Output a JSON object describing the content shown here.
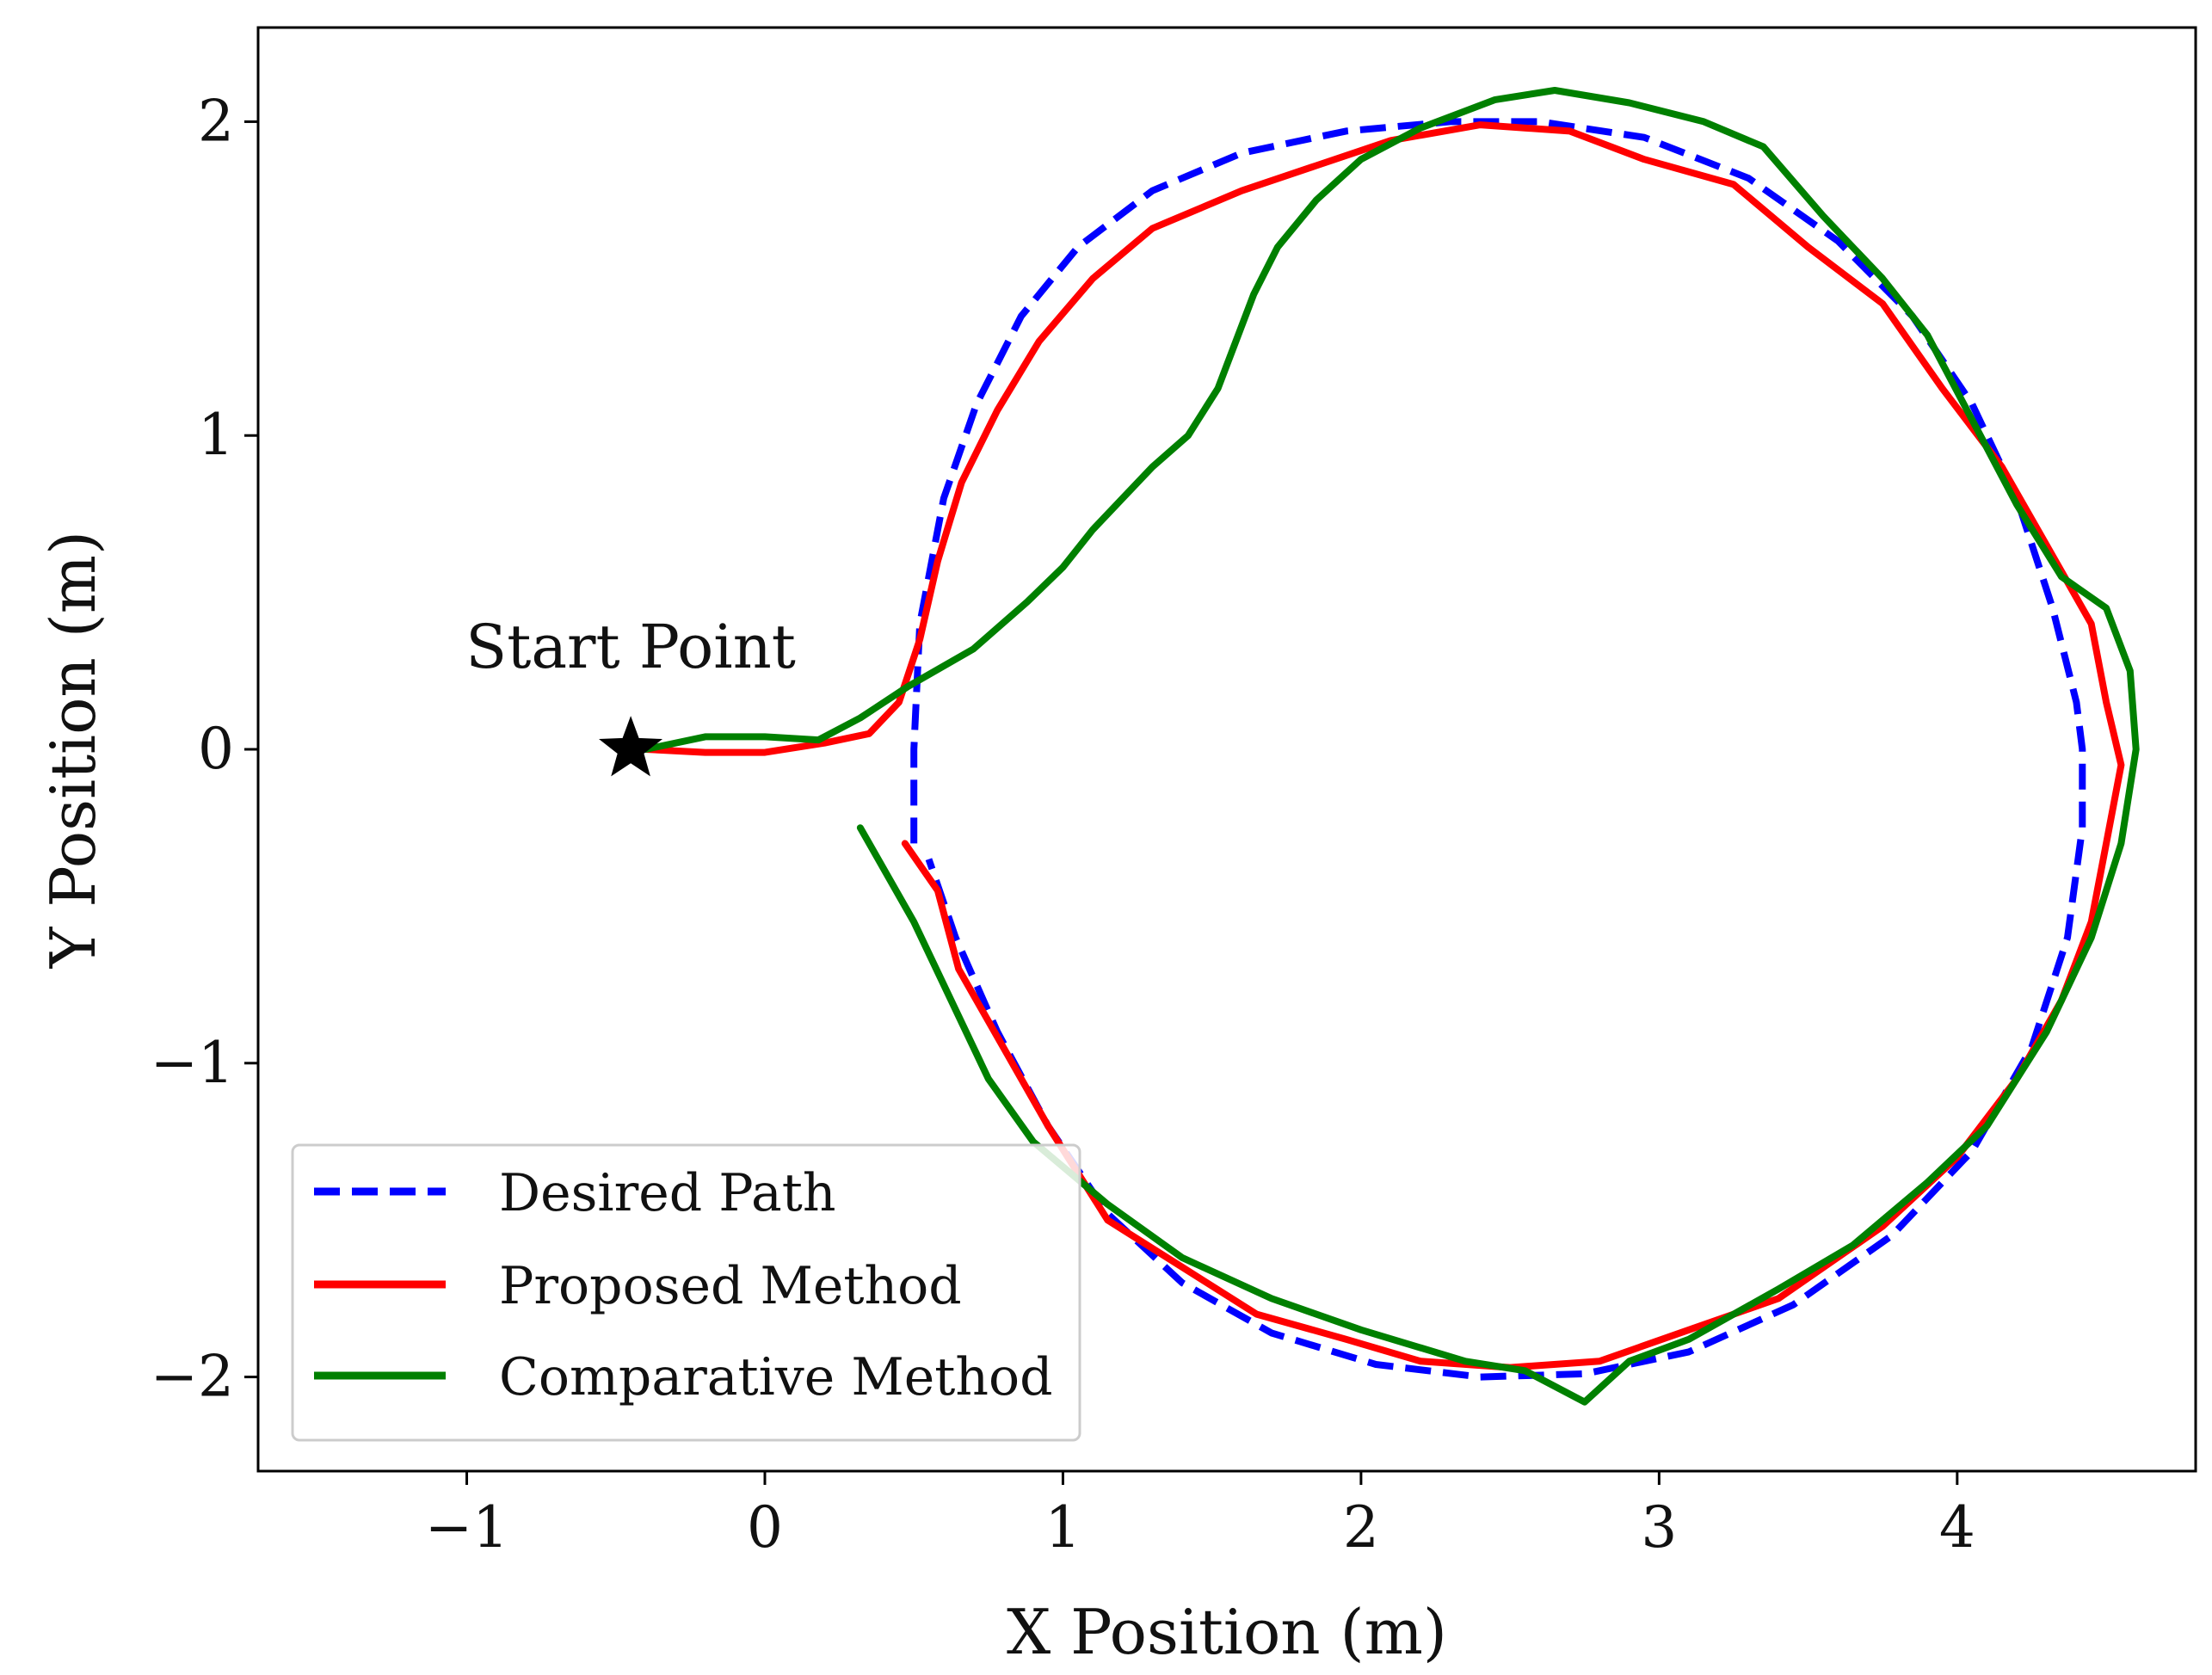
{
  "chart_data": {
    "type": "line",
    "title": "",
    "xlabel": "X Position (m)",
    "ylabel": "Y Position (m)",
    "xlim": [
      -1.7,
      4.8
    ],
    "ylim": [
      -2.3,
      2.3
    ],
    "xticks": [
      -1,
      0,
      1,
      2,
      3,
      4
    ],
    "yticks": [
      -2,
      -1,
      0,
      1,
      2
    ],
    "xtick_labels": [
      "−1",
      "0",
      "1",
      "2",
      "3",
      "4"
    ],
    "ytick_labels": [
      "−2",
      "−1",
      "0",
      "1",
      "2"
    ],
    "grid": false,
    "legend_position": "lower-left",
    "annotation": {
      "text": "Start Point",
      "point": {
        "x": -0.45,
        "y": 0.0
      },
      "marker": "star"
    },
    "series": [
      {
        "name": "Desired Path",
        "color": "#0000ff",
        "style": "dashed",
        "points": [
          [
            0.5,
            -0.3
          ],
          [
            0.5,
            0.0
          ],
          [
            0.52,
            0.4
          ],
          [
            0.6,
            0.8
          ],
          [
            0.71,
            1.1
          ],
          [
            0.86,
            1.38
          ],
          [
            1.05,
            1.6
          ],
          [
            1.3,
            1.78
          ],
          [
            1.6,
            1.9
          ],
          [
            1.95,
            1.97
          ],
          [
            2.3,
            2.0
          ],
          [
            2.6,
            2.0
          ],
          [
            2.95,
            1.95
          ],
          [
            3.3,
            1.82
          ],
          [
            3.6,
            1.62
          ],
          [
            3.85,
            1.38
          ],
          [
            4.05,
            1.1
          ],
          [
            4.2,
            0.8
          ],
          [
            4.32,
            0.45
          ],
          [
            4.4,
            0.15
          ],
          [
            4.42,
            0.0
          ],
          [
            4.42,
            -0.25
          ],
          [
            4.37,
            -0.6
          ],
          [
            4.25,
            -0.95
          ],
          [
            4.05,
            -1.28
          ],
          [
            3.78,
            -1.55
          ],
          [
            3.45,
            -1.77
          ],
          [
            3.1,
            -1.92
          ],
          [
            2.75,
            -1.99
          ],
          [
            2.4,
            -2.0
          ],
          [
            2.05,
            -1.96
          ],
          [
            1.7,
            -1.86
          ],
          [
            1.4,
            -1.7
          ],
          [
            1.15,
            -1.48
          ],
          [
            0.95,
            -1.2
          ],
          [
            0.78,
            -0.9
          ],
          [
            0.64,
            -0.6
          ],
          [
            0.55,
            -0.35
          ]
        ]
      },
      {
        "name": "Proposed Method",
        "color": "#ff0000",
        "style": "solid",
        "points": [
          [
            -0.4,
            0.0
          ],
          [
            -0.2,
            -0.01
          ],
          [
            0.0,
            -0.01
          ],
          [
            0.2,
            0.02
          ],
          [
            0.35,
            0.05
          ],
          [
            0.45,
            0.15
          ],
          [
            0.52,
            0.35
          ],
          [
            0.58,
            0.6
          ],
          [
            0.66,
            0.85
          ],
          [
            0.78,
            1.08
          ],
          [
            0.92,
            1.3
          ],
          [
            1.1,
            1.5
          ],
          [
            1.3,
            1.66
          ],
          [
            1.6,
            1.78
          ],
          [
            1.85,
            1.86
          ],
          [
            2.1,
            1.94
          ],
          [
            2.4,
            1.99
          ],
          [
            2.7,
            1.97
          ],
          [
            2.95,
            1.88
          ],
          [
            3.25,
            1.8
          ],
          [
            3.5,
            1.6
          ],
          [
            3.75,
            1.42
          ],
          [
            3.95,
            1.15
          ],
          [
            4.15,
            0.9
          ],
          [
            4.3,
            0.65
          ],
          [
            4.45,
            0.4
          ],
          [
            4.5,
            0.15
          ],
          [
            4.55,
            -0.05
          ],
          [
            4.5,
            -0.3
          ],
          [
            4.45,
            -0.55
          ],
          [
            4.35,
            -0.8
          ],
          [
            4.2,
            -1.05
          ],
          [
            4.0,
            -1.3
          ],
          [
            3.75,
            -1.52
          ],
          [
            3.4,
            -1.75
          ],
          [
            3.1,
            -1.85
          ],
          [
            2.8,
            -1.95
          ],
          [
            2.5,
            -1.97
          ],
          [
            2.2,
            -1.95
          ],
          [
            1.95,
            -1.88
          ],
          [
            1.65,
            -1.8
          ],
          [
            1.4,
            -1.65
          ],
          [
            1.15,
            -1.5
          ],
          [
            0.95,
            -1.2
          ],
          [
            0.8,
            -0.95
          ],
          [
            0.65,
            -0.7
          ],
          [
            0.58,
            -0.45
          ],
          [
            0.47,
            -0.3
          ]
        ]
      },
      {
        "name": "Comparative Method",
        "color": "#008000",
        "style": "solid",
        "points": [
          [
            -0.4,
            0.0
          ],
          [
            -0.2,
            0.04
          ],
          [
            0.0,
            0.04
          ],
          [
            0.18,
            0.03
          ],
          [
            0.32,
            0.1
          ],
          [
            0.48,
            0.2
          ],
          [
            0.7,
            0.32
          ],
          [
            0.88,
            0.47
          ],
          [
            1.0,
            0.58
          ],
          [
            1.1,
            0.7
          ],
          [
            1.2,
            0.8
          ],
          [
            1.3,
            0.9
          ],
          [
            1.42,
            1.0
          ],
          [
            1.52,
            1.15
          ],
          [
            1.58,
            1.3
          ],
          [
            1.64,
            1.45
          ],
          [
            1.72,
            1.6
          ],
          [
            1.85,
            1.75
          ],
          [
            2.0,
            1.88
          ],
          [
            2.2,
            1.98
          ],
          [
            2.45,
            2.07
          ],
          [
            2.65,
            2.1
          ],
          [
            2.9,
            2.06
          ],
          [
            3.15,
            2.0
          ],
          [
            3.35,
            1.92
          ],
          [
            3.55,
            1.7
          ],
          [
            3.75,
            1.5
          ],
          [
            3.9,
            1.32
          ],
          [
            4.05,
            1.05
          ],
          [
            4.2,
            0.78
          ],
          [
            4.35,
            0.55
          ],
          [
            4.5,
            0.45
          ],
          [
            4.58,
            0.25
          ],
          [
            4.6,
            0.0
          ],
          [
            4.55,
            -0.3
          ],
          [
            4.45,
            -0.6
          ],
          [
            4.3,
            -0.9
          ],
          [
            4.1,
            -1.2
          ],
          [
            3.9,
            -1.38
          ],
          [
            3.65,
            -1.58
          ],
          [
            3.4,
            -1.72
          ],
          [
            3.1,
            -1.88
          ],
          [
            2.9,
            -1.95
          ],
          [
            2.75,
            -2.08
          ],
          [
            2.55,
            -1.98
          ],
          [
            2.35,
            -1.95
          ],
          [
            2.0,
            -1.85
          ],
          [
            1.7,
            -1.75
          ],
          [
            1.4,
            -1.62
          ],
          [
            1.15,
            -1.45
          ],
          [
            0.9,
            -1.25
          ],
          [
            0.75,
            -1.05
          ],
          [
            0.65,
            -0.85
          ],
          [
            0.5,
            -0.55
          ],
          [
            0.32,
            -0.25
          ]
        ]
      }
    ]
  }
}
